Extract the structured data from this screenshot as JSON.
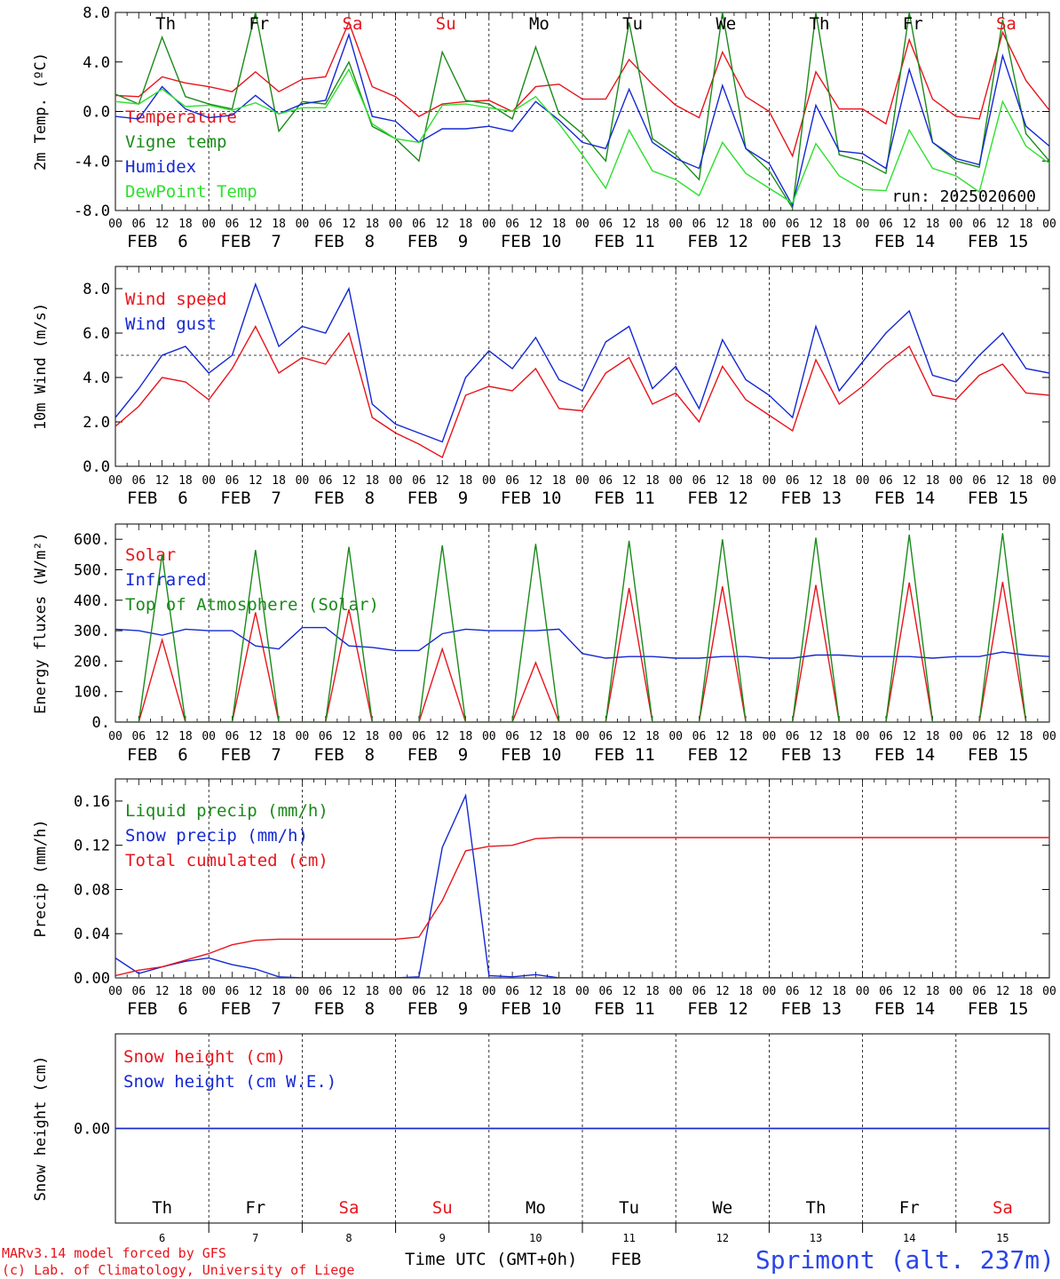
{
  "colors": {
    "red": "#e8141c",
    "dark_green": "#1a8a1a",
    "blue": "#1428d2",
    "light_green": "#2ee02e",
    "black": "#000000",
    "site_blue": "#2b45e8"
  },
  "hour_ticks": [
    "00",
    "06",
    "12",
    "18"
  ],
  "final_tick": "00",
  "day_labels": [
    "FEB  6",
    "FEB  7",
    "FEB  8",
    "FEB  9",
    "FEB 10",
    "FEB 11",
    "FEB 12",
    "FEB 13",
    "FEB 14",
    "FEB 15"
  ],
  "weekdays": [
    "Th",
    "Fr",
    "Sa",
    "Su",
    "Mo",
    "Tu",
    "We",
    "Th",
    "Fr",
    "Sa"
  ],
  "weekday_colors": [
    "black",
    "black",
    "red",
    "red",
    "black",
    "black",
    "black",
    "black",
    "black",
    "red"
  ],
  "day_numbers": [
    "6",
    "7",
    "8",
    "9",
    "10",
    "11",
    "12",
    "13",
    "14",
    "15"
  ],
  "footer": {
    "model_line": "MARv3.14 model forced by GFS",
    "copyright_line": "(c) Lab. of Climatology, University of Liege",
    "xlabel": "Time UTC (GMT+0h)",
    "month": "FEB",
    "site": "Sprimont (alt. 237m)"
  },
  "chart_data": [
    {
      "type": "line",
      "ylabel": "2m Temp. (ºC)",
      "ylim": [
        -8,
        8
      ],
      "yticks": [
        "8.0",
        "4.0",
        "0.0",
        "-4.0",
        "-8.0"
      ],
      "ytick_values": [
        8,
        4,
        0,
        -4,
        -8
      ],
      "ref_line": 0,
      "annotation": "run: 2025020600",
      "x": [
        "2025-02-06 00",
        "2025-02-06 06",
        "2025-02-06 12",
        "2025-02-06 18",
        "2025-02-07 00",
        "2025-02-07 06",
        "2025-02-07 12",
        "2025-02-07 18",
        "2025-02-08 00",
        "2025-02-08 06",
        "2025-02-08 12",
        "2025-02-08 18",
        "2025-02-09 00",
        "2025-02-09 06",
        "2025-02-09 12",
        "2025-02-09 18",
        "2025-02-10 00",
        "2025-02-10 06",
        "2025-02-10 12",
        "2025-02-10 18",
        "2025-02-11 00",
        "2025-02-11 06",
        "2025-02-11 12",
        "2025-02-11 18",
        "2025-02-12 00",
        "2025-02-12 06",
        "2025-02-12 12",
        "2025-02-12 18",
        "2025-02-13 00",
        "2025-02-13 06",
        "2025-02-13 12",
        "2025-02-13 18",
        "2025-02-14 00",
        "2025-02-14 06",
        "2025-02-14 12",
        "2025-02-14 18",
        "2025-02-15 00",
        "2025-02-15 06",
        "2025-02-15 12",
        "2025-02-15 18",
        "2025-02-16 00"
      ],
      "series": [
        {
          "name": "Temperature",
          "color": "red",
          "values": [
            1.3,
            1.2,
            2.8,
            2.3,
            2.0,
            1.6,
            3.2,
            1.6,
            2.6,
            2.8,
            7.2,
            2.0,
            1.2,
            -0.4,
            0.6,
            0.8,
            0.9,
            0.0,
            2.0,
            2.2,
            1.0,
            1.0,
            4.2,
            2.2,
            0.5,
            -0.5,
            4.8,
            1.2,
            0.0,
            -3.6,
            3.2,
            0.2,
            0.2,
            -1.0,
            5.8,
            1.0,
            -0.4,
            -0.6,
            6.4,
            2.5,
            0.1
          ]
        },
        {
          "name": "Vigne temp",
          "color": "dark_green",
          "values": [
            1.4,
            0.6,
            6.0,
            1.2,
            0.6,
            0.2,
            8.0,
            -1.6,
            0.8,
            0.6,
            4.0,
            -1.2,
            -2.2,
            -4.0,
            4.8,
            0.9,
            0.6,
            -0.6,
            5.2,
            -0.2,
            -1.8,
            -4.0,
            7.2,
            -2.2,
            -3.5,
            -5.5,
            8.0,
            -3.0,
            -4.8,
            -7.8,
            8.0,
            -3.5,
            -4.0,
            -5.0,
            8.0,
            -2.5,
            -4.0,
            -4.5,
            7.4,
            -1.8,
            -4.0
          ]
        },
        {
          "name": "Humidex",
          "color": "blue",
          "values": [
            -0.4,
            -0.6,
            2.0,
            0.2,
            -0.5,
            -0.3,
            1.3,
            -0.2,
            0.6,
            0.9,
            6.2,
            -0.4,
            -0.8,
            -2.5,
            -1.4,
            -1.4,
            -1.2,
            -1.6,
            0.8,
            -0.7,
            -2.5,
            -3.0,
            1.8,
            -2.5,
            -3.8,
            -4.6,
            2.1,
            -3.0,
            -4.2,
            -7.6,
            0.5,
            -3.2,
            -3.4,
            -4.6,
            3.4,
            -2.5,
            -3.8,
            -4.3,
            4.5,
            -1.2,
            -2.8
          ]
        },
        {
          "name": "DewPoint Temp",
          "color": "light_green",
          "values": [
            0.8,
            0.6,
            1.8,
            0.4,
            0.5,
            0.1,
            0.7,
            -0.2,
            0.3,
            0.3,
            3.4,
            -1.0,
            -2.2,
            -2.5,
            0.5,
            0.6,
            0.3,
            0.0,
            1.2,
            -1.0,
            -3.5,
            -6.2,
            -1.5,
            -4.8,
            -5.5,
            -6.8,
            -2.5,
            -5.0,
            -6.2,
            -7.4,
            -2.6,
            -5.2,
            -6.3,
            -6.4,
            -1.5,
            -4.6,
            -5.2,
            -6.5,
            0.8,
            -2.8,
            -4.2
          ]
        }
      ]
    },
    {
      "type": "line",
      "ylabel": "10m Wind (m/s)",
      "ylim": [
        0,
        9
      ],
      "yticks": [
        "8.0",
        "6.0",
        "4.0",
        "2.0",
        "0.0"
      ],
      "ytick_values": [
        8,
        6,
        4,
        2,
        0
      ],
      "ref_line": 5,
      "x": [
        "2025-02-06 00",
        "2025-02-06 06",
        "2025-02-06 12",
        "2025-02-06 18",
        "2025-02-07 00",
        "2025-02-07 06",
        "2025-02-07 12",
        "2025-02-07 18",
        "2025-02-08 00",
        "2025-02-08 06",
        "2025-02-08 12",
        "2025-02-08 18",
        "2025-02-09 00",
        "2025-02-09 06",
        "2025-02-09 12",
        "2025-02-09 18",
        "2025-02-10 00",
        "2025-02-10 06",
        "2025-02-10 12",
        "2025-02-10 18",
        "2025-02-11 00",
        "2025-02-11 06",
        "2025-02-11 12",
        "2025-02-11 18",
        "2025-02-12 00",
        "2025-02-12 06",
        "2025-02-12 12",
        "2025-02-12 18",
        "2025-02-13 00",
        "2025-02-13 06",
        "2025-02-13 12",
        "2025-02-13 18",
        "2025-02-14 00",
        "2025-02-14 06",
        "2025-02-14 12",
        "2025-02-14 18",
        "2025-02-15 00",
        "2025-02-15 06",
        "2025-02-15 12",
        "2025-02-15 18",
        "2025-02-16 00"
      ],
      "series": [
        {
          "name": "Wind speed",
          "color": "red",
          "values": [
            1.8,
            2.7,
            4.0,
            3.8,
            3.0,
            4.4,
            6.3,
            4.2,
            4.9,
            4.6,
            6.0,
            2.2,
            1.5,
            1.0,
            0.4,
            3.2,
            3.6,
            3.4,
            4.4,
            2.6,
            2.5,
            4.2,
            4.9,
            2.8,
            3.3,
            2.0,
            4.5,
            3.0,
            2.3,
            1.6,
            4.8,
            2.8,
            3.6,
            4.6,
            5.4,
            3.2,
            3.0,
            4.1,
            4.6,
            3.3,
            3.2
          ]
        },
        {
          "name": "Wind gust",
          "color": "blue",
          "values": [
            2.2,
            3.5,
            5.0,
            5.4,
            4.2,
            5.0,
            8.2,
            5.4,
            6.3,
            6.0,
            8.0,
            2.8,
            1.9,
            1.5,
            1.1,
            4.0,
            5.2,
            4.4,
            5.8,
            3.9,
            3.4,
            5.6,
            6.3,
            3.5,
            4.5,
            2.6,
            5.7,
            3.9,
            3.2,
            2.2,
            6.3,
            3.4,
            4.7,
            6.0,
            7.0,
            4.1,
            3.8,
            5.0,
            6.0,
            4.4,
            4.2
          ]
        }
      ]
    },
    {
      "type": "line",
      "ylabel": "Energy fluxes (W/m²)",
      "ylim": [
        0,
        650
      ],
      "yticks": [
        "600.",
        "500.",
        "400.",
        "300.",
        "200.",
        "100.",
        "0."
      ],
      "ytick_values": [
        600,
        500,
        400,
        300,
        200,
        100,
        0
      ],
      "x": [
        "2025-02-06 00",
        "2025-02-06 06",
        "2025-02-06 12",
        "2025-02-06 18",
        "2025-02-07 00",
        "2025-02-07 06",
        "2025-02-07 12",
        "2025-02-07 18",
        "2025-02-08 00",
        "2025-02-08 06",
        "2025-02-08 12",
        "2025-02-08 18",
        "2025-02-09 00",
        "2025-02-09 06",
        "2025-02-09 12",
        "2025-02-09 18",
        "2025-02-10 00",
        "2025-02-10 06",
        "2025-02-10 12",
        "2025-02-10 18",
        "2025-02-11 00",
        "2025-02-11 06",
        "2025-02-11 12",
        "2025-02-11 18",
        "2025-02-12 00",
        "2025-02-12 06",
        "2025-02-12 12",
        "2025-02-12 18",
        "2025-02-13 00",
        "2025-02-13 06",
        "2025-02-13 12",
        "2025-02-13 18",
        "2025-02-14 00",
        "2025-02-14 06",
        "2025-02-14 12",
        "2025-02-14 18",
        "2025-02-15 00",
        "2025-02-15 06",
        "2025-02-15 12",
        "2025-02-15 18",
        "2025-02-16 00"
      ],
      "series": [
        {
          "name": "Solar",
          "color": "red",
          "values": [
            0,
            0,
            270,
            0,
            0,
            0,
            360,
            0,
            0,
            0,
            370,
            0,
            0,
            0,
            240,
            0,
            0,
            0,
            195,
            0,
            0,
            0,
            440,
            0,
            0,
            0,
            445,
            0,
            0,
            0,
            450,
            0,
            0,
            0,
            458,
            0,
            0,
            0,
            460,
            0,
            0
          ]
        },
        {
          "name": "Infrared",
          "color": "blue",
          "values": [
            305,
            300,
            285,
            305,
            300,
            300,
            250,
            240,
            310,
            310,
            250,
            245,
            235,
            235,
            290,
            305,
            300,
            300,
            300,
            305,
            225,
            210,
            215,
            215,
            210,
            210,
            215,
            215,
            210,
            210,
            220,
            220,
            215,
            215,
            215,
            210,
            215,
            215,
            230,
            220,
            215
          ]
        },
        {
          "name": "Top of Atmosphere (Solar)",
          "color": "dark_green",
          "values": [
            0,
            0,
            550,
            0,
            0,
            0,
            565,
            0,
            0,
            0,
            575,
            0,
            0,
            0,
            580,
            0,
            0,
            0,
            585,
            0,
            0,
            0,
            595,
            0,
            0,
            0,
            600,
            0,
            0,
            0,
            605,
            0,
            0,
            0,
            615,
            0,
            0,
            0,
            620,
            0,
            0
          ]
        }
      ]
    },
    {
      "type": "line",
      "ylabel": "Precip (mm/h)",
      "ylim": [
        0,
        0.18
      ],
      "yticks": [
        "0.16",
        "0.12",
        "0.08",
        "0.04",
        "0.00"
      ],
      "ytick_values": [
        0.16,
        0.12,
        0.08,
        0.04,
        0
      ],
      "x": [
        "2025-02-06 00",
        "2025-02-06 06",
        "2025-02-06 12",
        "2025-02-06 18",
        "2025-02-07 00",
        "2025-02-07 06",
        "2025-02-07 12",
        "2025-02-07 18",
        "2025-02-08 00",
        "2025-02-08 06",
        "2025-02-08 12",
        "2025-02-08 18",
        "2025-02-09 00",
        "2025-02-09 06",
        "2025-02-09 12",
        "2025-02-09 18",
        "2025-02-10 00",
        "2025-02-10 06",
        "2025-02-10 12",
        "2025-02-10 18",
        "2025-02-11 00",
        "2025-02-11 06",
        "2025-02-11 12",
        "2025-02-11 18",
        "2025-02-12 00",
        "2025-02-12 06",
        "2025-02-12 12",
        "2025-02-12 18",
        "2025-02-13 00",
        "2025-02-13 06",
        "2025-02-13 12",
        "2025-02-13 18",
        "2025-02-14 00",
        "2025-02-14 06",
        "2025-02-14 12",
        "2025-02-14 18",
        "2025-02-15 00",
        "2025-02-15 06",
        "2025-02-15 12",
        "2025-02-15 18",
        "2025-02-16 00"
      ],
      "series": [
        {
          "name": "Liquid precip (mm/h)",
          "color": "dark_green",
          "values": [
            0,
            0,
            0,
            0,
            0,
            0,
            0,
            0,
            0,
            0,
            0,
            0,
            0,
            0,
            0,
            0,
            0,
            0,
            0,
            0,
            0,
            0,
            0,
            0,
            0,
            0,
            0,
            0,
            0,
            0,
            0,
            0,
            0,
            0,
            0,
            0,
            0,
            0,
            0,
            0,
            0
          ]
        },
        {
          "name": "Snow precip (mm/h)",
          "color": "blue",
          "values": [
            0.018,
            0.004,
            0.01,
            0.015,
            0.018,
            0.012,
            0.008,
            0.001,
            0,
            0,
            0,
            0,
            0,
            0.001,
            0.118,
            0.165,
            0.002,
            0.001,
            0.003,
            0,
            0,
            0,
            0,
            0,
            0,
            0,
            0,
            0,
            0,
            0,
            0,
            0,
            0,
            0,
            0,
            0,
            0,
            0,
            0,
            0,
            0
          ]
        },
        {
          "name": "Total cumulated (cm)",
          "color": "red",
          "values": [
            0.002,
            0.007,
            0.01,
            0.016,
            0.022,
            0.03,
            0.034,
            0.035,
            0.035,
            0.035,
            0.035,
            0.035,
            0.035,
            0.037,
            0.07,
            0.115,
            0.119,
            0.12,
            0.126,
            0.127,
            0.127,
            0.127,
            0.127,
            0.127,
            0.127,
            0.127,
            0.127,
            0.127,
            0.127,
            0.127,
            0.127,
            0.127,
            0.127,
            0.127,
            0.127,
            0.127,
            0.127,
            0.127,
            0.127,
            0.127,
            0.127
          ]
        }
      ]
    },
    {
      "type": "line",
      "ylabel": "Snow height (cm)",
      "yticks": [
        "0.00"
      ],
      "ytick_values": [
        0
      ],
      "ylim": [
        -1,
        1
      ],
      "x": [
        "2025-02-06 00",
        "2025-02-16 00"
      ],
      "series": [
        {
          "name": "Snow height (cm)",
          "color": "red",
          "values": [
            0,
            0
          ]
        },
        {
          "name": "Snow height (cm W.E.)",
          "color": "blue",
          "values": [
            0,
            0
          ]
        }
      ]
    }
  ]
}
